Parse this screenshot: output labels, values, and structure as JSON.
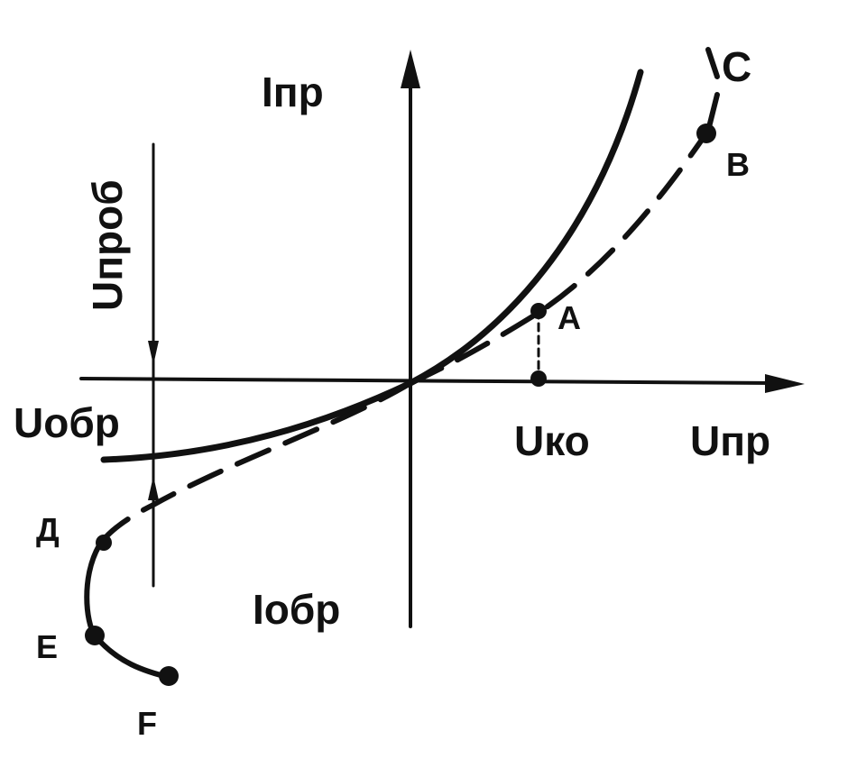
{
  "axes": {
    "y_positive": "Iпр",
    "y_negative": "Iобр",
    "x_positive": "Uпр",
    "x_negative": "Uобр",
    "breakdown": "Uпроб",
    "knee": "Uко"
  },
  "points": {
    "a": "A",
    "b": "B",
    "c": "C",
    "d": "Д",
    "e": "E",
    "f": "F"
  }
}
